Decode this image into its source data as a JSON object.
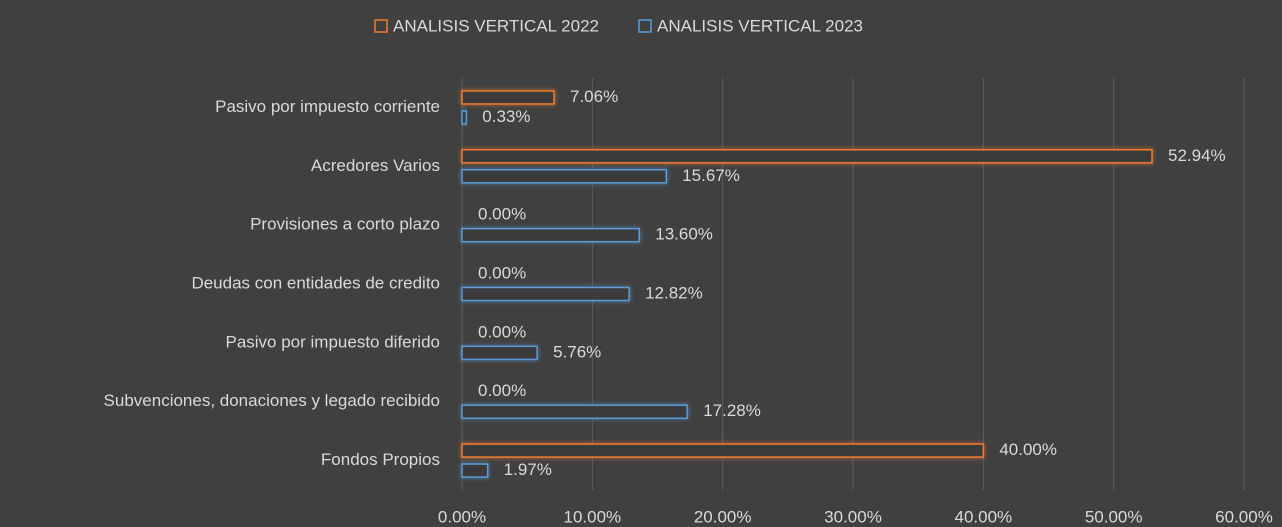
{
  "chart_data": {
    "type": "hbar",
    "categories": [
      "Pasivo por impuesto corriente",
      "Acredores Varios",
      "Provisiones a corto plazo",
      "Deudas con entidades de credito",
      "Pasivo por impuesto diferido",
      "Subvenciones, donaciones y legado recibido",
      "Fondos Propios"
    ],
    "series": [
      {
        "name": "ANALISIS VERTICAL 2022",
        "color": "#ed7d31",
        "values": [
          7.06,
          52.94,
          0,
          0,
          0,
          0,
          40.0
        ],
        "value_labels": [
          "7.06%",
          "52.94%",
          "0.00%",
          "0.00%",
          "0.00%",
          "0.00%",
          "40.00%"
        ]
      },
      {
        "name": "ANALISIS VERTICAL 2023",
        "color": "#5b9bd5",
        "values": [
          0.33,
          15.67,
          13.6,
          12.82,
          5.76,
          17.28,
          1.97
        ],
        "value_labels": [
          "0.33%",
          "15.67%",
          "13.60%",
          "12.82%",
          "5.76%",
          "17.28%",
          "1.97%"
        ]
      }
    ],
    "xlim": [
      0,
      60
    ],
    "xticks": [
      {
        "value": 0,
        "label": "0.00%"
      },
      {
        "value": 10,
        "label": "10.00%"
      },
      {
        "value": 20,
        "label": "20.00%"
      },
      {
        "value": 30,
        "label": "30.00%"
      },
      {
        "value": 40,
        "label": "40.00%"
      },
      {
        "value": 50,
        "label": "50.00%"
      },
      {
        "value": 60,
        "label": "60.00%"
      }
    ],
    "grid": true,
    "legend": "top"
  }
}
